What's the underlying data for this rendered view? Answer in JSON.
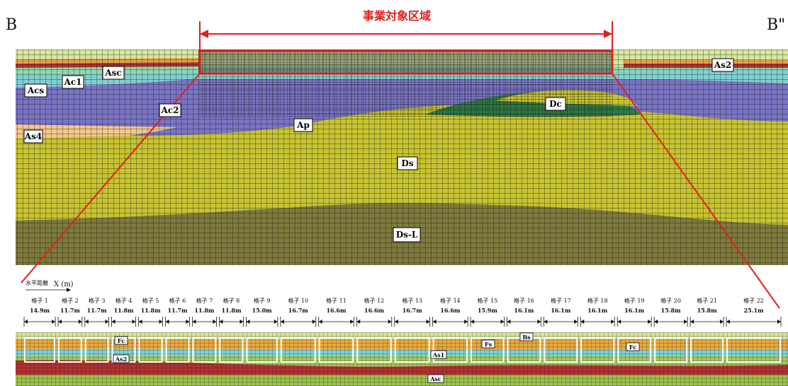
{
  "title": "事業対象区域",
  "left_mark": "B",
  "right_mark": "B\"",
  "upper_labels": {
    "acs": "Acs",
    "ac1": "Ac1",
    "asc": "Asc",
    "ac2": "Ac2",
    "as4": "As4",
    "ap": "Ap",
    "dc": "Dc",
    "ds": "Ds",
    "dsl": "Ds-L",
    "as2": "As2"
  },
  "axis_label": "水平距離",
  "axis_unit": "X (m)",
  "cells": [
    {
      "name": "格子 1",
      "width": "14.9m"
    },
    {
      "name": "格子 2",
      "width": "11.7m"
    },
    {
      "name": "格子 3",
      "width": "11.7m"
    },
    {
      "name": "格子 4",
      "width": "11.8m"
    },
    {
      "name": "格子 5",
      "width": "11.8m"
    },
    {
      "name": "格子 6",
      "width": "11.7m"
    },
    {
      "name": "格子 7",
      "width": "11.8m"
    },
    {
      "name": "格子 8",
      "width": "11.8m"
    },
    {
      "name": "格子 9",
      "width": "15.0m"
    },
    {
      "name": "格子 10",
      "width": "16.7m"
    },
    {
      "name": "格子 11",
      "width": "16.6m"
    },
    {
      "name": "格子 12",
      "width": "16.6m"
    },
    {
      "name": "格子 13",
      "width": "16.7m"
    },
    {
      "name": "格子 14",
      "width": "16.6m"
    },
    {
      "name": "格子 15",
      "width": "15.9m"
    },
    {
      "name": "格子 16",
      "width": "16.1m"
    },
    {
      "name": "格子 17",
      "width": "16.1m"
    },
    {
      "name": "格子 18",
      "width": "16.1m"
    },
    {
      "name": "格子 19",
      "width": "16.1m"
    },
    {
      "name": "格子 20",
      "width": "15.8m"
    },
    {
      "name": "格子 21",
      "width": "15.8m"
    },
    {
      "name": "格子 22",
      "width": "25.1m"
    }
  ],
  "lower_labels": {
    "fc1": "Fc",
    "as2": "As2",
    "fs": "Fs",
    "bs": "Bs",
    "as1": "As1",
    "fc2": "Fc",
    "asc": "Asc"
  },
  "colors": {
    "red": "#e02020",
    "dsl": "#7d7a3c",
    "ds": "#c8c431",
    "ap": "#7a74c4",
    "dc": "#2f7a45",
    "cyan": "#7fd0d2",
    "mint": "#8fd8b0",
    "as4": "#f4c88c"
  }
}
